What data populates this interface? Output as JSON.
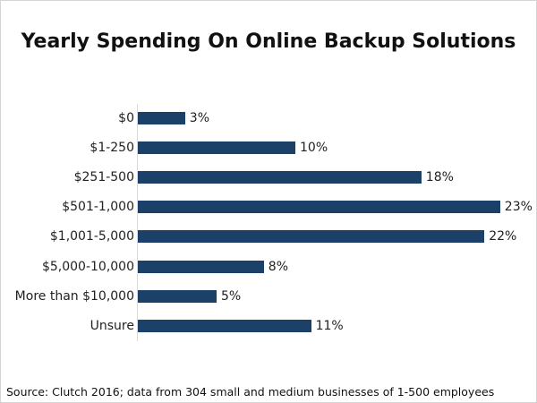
{
  "chart_data": {
    "type": "bar",
    "orientation": "horizontal",
    "title": "Yearly Spending On Online Backup Solutions",
    "categories": [
      "$0",
      "$1-250",
      "$251-500",
      "$501-1,000",
      "$1,001-5,000",
      "$5,000-10,000",
      "More than $10,000",
      "Unsure"
    ],
    "values": [
      3,
      10,
      18,
      23,
      22,
      8,
      5,
      11
    ],
    "value_labels": [
      "3%",
      "10%",
      "18%",
      "23%",
      "22%",
      "8%",
      "5%",
      "11%"
    ],
    "xlabel": "",
    "ylabel": "",
    "xlim": [
      0,
      23
    ],
    "grid": false,
    "legend": null,
    "bar_color": "#1b4168",
    "source": "Source: Clutch 2016; data from 304 small and medium businesses of 1-500 employees"
  }
}
